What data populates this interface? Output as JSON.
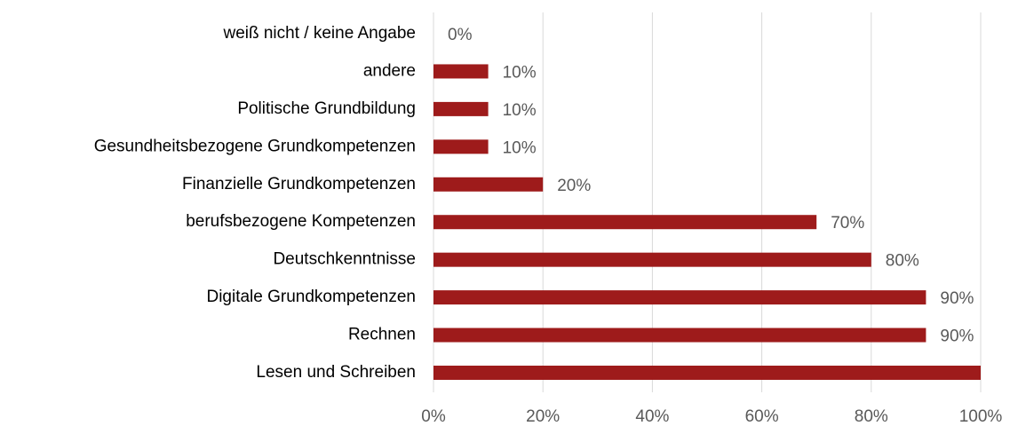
{
  "chart_data": {
    "type": "barh",
    "categories": [
      "weiß nicht / keine Angabe",
      "andere",
      "Politische Grundbildung",
      "Gesundheitsbezogene Grundkompetenzen",
      "Finanzielle Grundkompetenzen",
      "berufsbezogene Kompetenzen",
      "Deutschkenntnisse",
      "Digitale Grundkompetenzen",
      "Rechnen",
      "Lesen und Schreiben"
    ],
    "values": [
      0,
      10,
      10,
      10,
      20,
      70,
      80,
      90,
      90,
      100
    ],
    "value_labels": [
      "0%",
      "10%",
      "10%",
      "10%",
      "20%",
      "70%",
      "80%",
      "90%",
      "90%",
      null
    ],
    "color": "#9e1b1b",
    "xlim": [
      0,
      100
    ],
    "xticks": [
      {
        "value": 0,
        "label": "0%"
      },
      {
        "value": 20,
        "label": "20%"
      },
      {
        "value": 40,
        "label": "40%"
      },
      {
        "value": 60,
        "label": "60%"
      },
      {
        "value": 80,
        "label": "80%"
      },
      {
        "value": 100,
        "label": "100%"
      }
    ],
    "grid": true
  }
}
